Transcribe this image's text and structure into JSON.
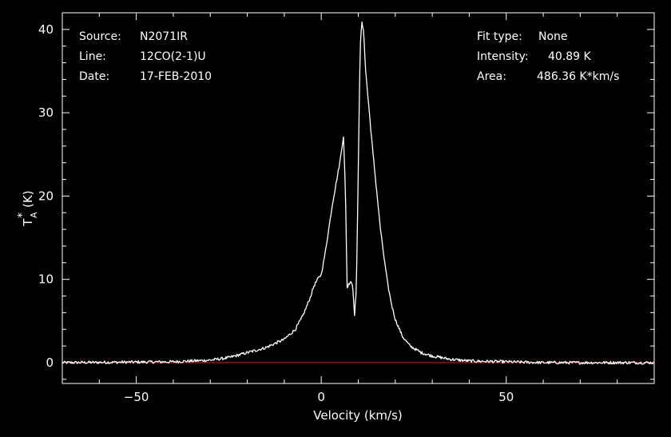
{
  "info_left": {
    "source_label": "Source:",
    "source_value": "N2071IR",
    "line_label": "Line:",
    "line_value": "12CO(2-1)U",
    "date_label": "Date:",
    "date_value": "17-FEB-2010"
  },
  "info_right": {
    "fit_label": "Fit type:",
    "fit_value": "None",
    "intensity_label": "Intensity:",
    "intensity_value": "40.89 K",
    "area_label": "Area:",
    "area_value": "486.36 K*km/s"
  },
  "colors": {
    "background": "#000000",
    "foreground": "#ffffff",
    "baseline": "#e01010"
  },
  "chart_data": {
    "type": "line",
    "title": "",
    "xlabel": "Velocity (km/s)",
    "ylabel": "T_A* (K)",
    "ylabel_main": "T",
    "ylabel_sub": "A",
    "ylabel_sup": "*",
    "ylabel_unit": "(K)",
    "xlim": [
      -70,
      90
    ],
    "ylim": [
      -2.5,
      42
    ],
    "xticks": [
      -50,
      0,
      50
    ],
    "xtick_labels": [
      "−50",
      "0",
      "50"
    ],
    "yticks": [
      0,
      10,
      20,
      30,
      40
    ],
    "ytick_labels": [
      "0",
      "10",
      "20",
      "30",
      "40"
    ],
    "grid": false,
    "baseline": 0,
    "series": [
      {
        "x": [
          -70,
          -40,
          -30,
          -25,
          -20,
          -15,
          -10,
          -7,
          -5,
          -3,
          -2,
          -1,
          0,
          1,
          2,
          3,
          4,
          5,
          6,
          6.5,
          7,
          7.5,
          8,
          8.5,
          9,
          9.5,
          10,
          10.5,
          11,
          11.5,
          12,
          13,
          14,
          15,
          16,
          17,
          18,
          19,
          20,
          22,
          24,
          27,
          30,
          35,
          40,
          50,
          60,
          90
        ],
        "y": [
          0,
          0.1,
          0.3,
          0.6,
          1.2,
          1.8,
          2.8,
          4,
          5.6,
          7.8,
          9.2,
          10,
          10.6,
          13,
          16,
          19,
          21.5,
          24,
          27.2,
          21,
          9,
          9.5,
          9.8,
          9.2,
          5.8,
          9,
          23,
          38,
          40.8,
          39.5,
          35,
          30,
          25,
          20.5,
          16,
          12.5,
          9.3,
          7,
          5.2,
          3.1,
          2,
          1.2,
          0.8,
          0.4,
          0.2,
          0.1,
          0,
          0
        ]
      }
    ]
  }
}
